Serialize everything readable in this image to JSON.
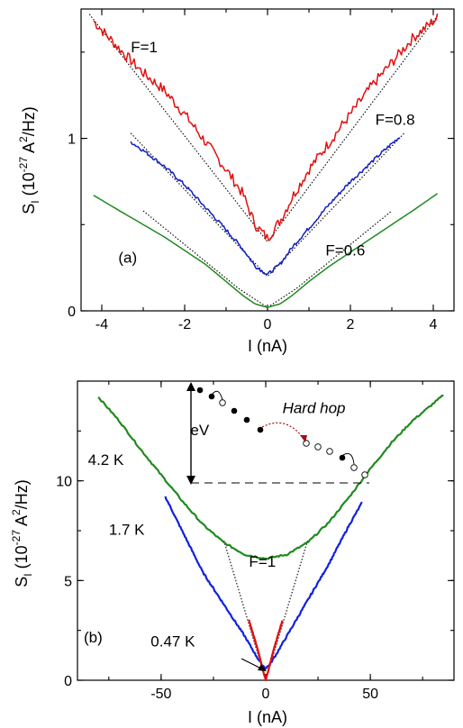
{
  "chart_data": [
    {
      "type": "line",
      "panel_label": "(a)",
      "xlabel": "I (nA)",
      "ylabel": {
        "base": "S",
        "sub": "I",
        "pre": " (10",
        "exp1": "-27",
        "mid": " A",
        "exp2": "2",
        "post": "/Hz)"
      },
      "xlim": [
        -4.5,
        4.5
      ],
      "ylim": [
        0,
        1.75
      ],
      "xticks": [
        -4,
        -2,
        0,
        2,
        4
      ],
      "yticks": [
        0,
        1
      ],
      "series": [
        {
          "name": "F=1",
          "color": "#e01010",
          "style": "noisy",
          "x": [
            -4.2,
            -3.5,
            -3.0,
            -2.5,
            -2.0,
            -1.5,
            -1.0,
            -0.6,
            -0.3,
            0.0,
            0.3,
            0.6,
            1.0,
            1.5,
            2.0,
            2.5,
            3.0,
            3.5,
            4.1
          ],
          "y": [
            1.68,
            1.5,
            1.38,
            1.28,
            1.14,
            0.98,
            0.82,
            0.68,
            0.5,
            0.42,
            0.52,
            0.66,
            0.82,
            0.98,
            1.14,
            1.3,
            1.44,
            1.58,
            1.7
          ]
        },
        {
          "name": "F=0.8",
          "color": "#1020c0",
          "style": "noisy",
          "x": [
            -3.3,
            -3.0,
            -2.5,
            -2.0,
            -1.5,
            -1.0,
            -0.6,
            -0.3,
            0.0,
            0.3,
            0.6,
            1.0,
            1.5,
            2.0,
            2.5,
            3.0,
            3.2
          ],
          "y": [
            0.98,
            0.93,
            0.84,
            0.73,
            0.6,
            0.47,
            0.36,
            0.26,
            0.21,
            0.27,
            0.37,
            0.48,
            0.62,
            0.75,
            0.86,
            0.97,
            1.01
          ]
        },
        {
          "name": "F=0.6",
          "color": "#1f8a1f",
          "style": "smooth",
          "x": [
            -4.2,
            -3.5,
            -3.0,
            -2.5,
            -2.0,
            -1.5,
            -1.0,
            -0.6,
            -0.3,
            0.0,
            0.3,
            0.6,
            1.0,
            1.5,
            2.0,
            2.5,
            3.0,
            3.5,
            4.1
          ],
          "y": [
            0.67,
            0.57,
            0.5,
            0.43,
            0.35,
            0.27,
            0.17,
            0.09,
            0.04,
            0.02,
            0.04,
            0.09,
            0.17,
            0.26,
            0.34,
            0.42,
            0.5,
            0.58,
            0.68
          ]
        }
      ],
      "fits": [
        {
          "x": [
            -4.3,
            0.0,
            4.1
          ],
          "y": [
            1.72,
            0.4,
            1.71
          ]
        },
        {
          "x": [
            -3.3,
            0.0,
            3.3
          ],
          "y": [
            1.03,
            0.2,
            1.03
          ]
        },
        {
          "x": [
            -3.0,
            -0.7,
            0.0,
            0.7,
            3.0
          ],
          "y": [
            0.58,
            0.13,
            0.02,
            0.13,
            0.58
          ]
        }
      ],
      "annotations": [
        {
          "text": "F=1",
          "x": -3.3,
          "y": 1.5
        },
        {
          "text": "F=0.8",
          "x": 2.6,
          "y": 1.08
        },
        {
          "text": "F=0.6",
          "x": 1.4,
          "y": 0.32
        },
        {
          "text": "(a)",
          "x": -3.6,
          "y": 0.28
        }
      ]
    },
    {
      "type": "line",
      "panel_label": "(b)",
      "xlabel": "I (nA)",
      "ylabel": {
        "base": "S",
        "sub": "I",
        "pre": " (10",
        "exp1": "-27",
        "mid": " A",
        "exp2": "2",
        "post": "/Hz)"
      },
      "xlim": [
        -90,
        90
      ],
      "ylim": [
        0,
        15
      ],
      "xticks": [
        -50,
        0,
        50
      ],
      "yticks": [
        0,
        5,
        10
      ],
      "series": [
        {
          "name": "4.2 K",
          "color": "#1f8a1f",
          "x": [
            -80,
            -70,
            -60,
            -50,
            -40,
            -30,
            -20,
            -10,
            0,
            10,
            20,
            30,
            40,
            50,
            60,
            70,
            85
          ],
          "y": [
            14.2,
            13.0,
            11.6,
            10.3,
            9.0,
            7.8,
            6.9,
            6.3,
            6.1,
            6.3,
            6.9,
            7.9,
            9.2,
            10.6,
            11.9,
            13.0,
            14.3
          ]
        },
        {
          "name": "1.7 K",
          "color": "#1020e0",
          "x": [
            -48,
            -40,
            -30,
            -20,
            -10,
            -5,
            -2,
            0,
            2,
            5,
            10,
            20,
            30,
            40,
            46
          ],
          "y": [
            9.2,
            7.5,
            5.4,
            3.8,
            2.2,
            1.3,
            0.8,
            0.6,
            0.8,
            1.3,
            2.2,
            4.0,
            5.8,
            7.8,
            8.9
          ]
        },
        {
          "name": "0.47 K",
          "color": "#e01010",
          "x": [
            -8,
            -4,
            -1,
            0,
            1,
            4,
            8
          ],
          "y": [
            3.0,
            1.6,
            0.4,
            0.0,
            0.4,
            1.6,
            3.0
          ]
        }
      ],
      "fits": [
        {
          "x": [
            -20,
            0,
            20
          ],
          "y": [
            7.0,
            0.0,
            7.0
          ]
        }
      ],
      "annotations": [
        {
          "text": "4.2 K",
          "x": -85,
          "y": 10.8
        },
        {
          "text": "1.7 K",
          "x": -75,
          "y": 7.3
        },
        {
          "text": "F=1",
          "x": -8,
          "y": 5.7
        },
        {
          "text": "(b)",
          "x": -87,
          "y": 1.9
        },
        {
          "text": "0.47 K",
          "x": -55,
          "y": 1.7
        },
        {
          "text": "eV",
          "x": -36,
          "y": 12.3
        },
        {
          "text": "Hard hop",
          "x": 8,
          "y": 13.4
        }
      ]
    }
  ]
}
